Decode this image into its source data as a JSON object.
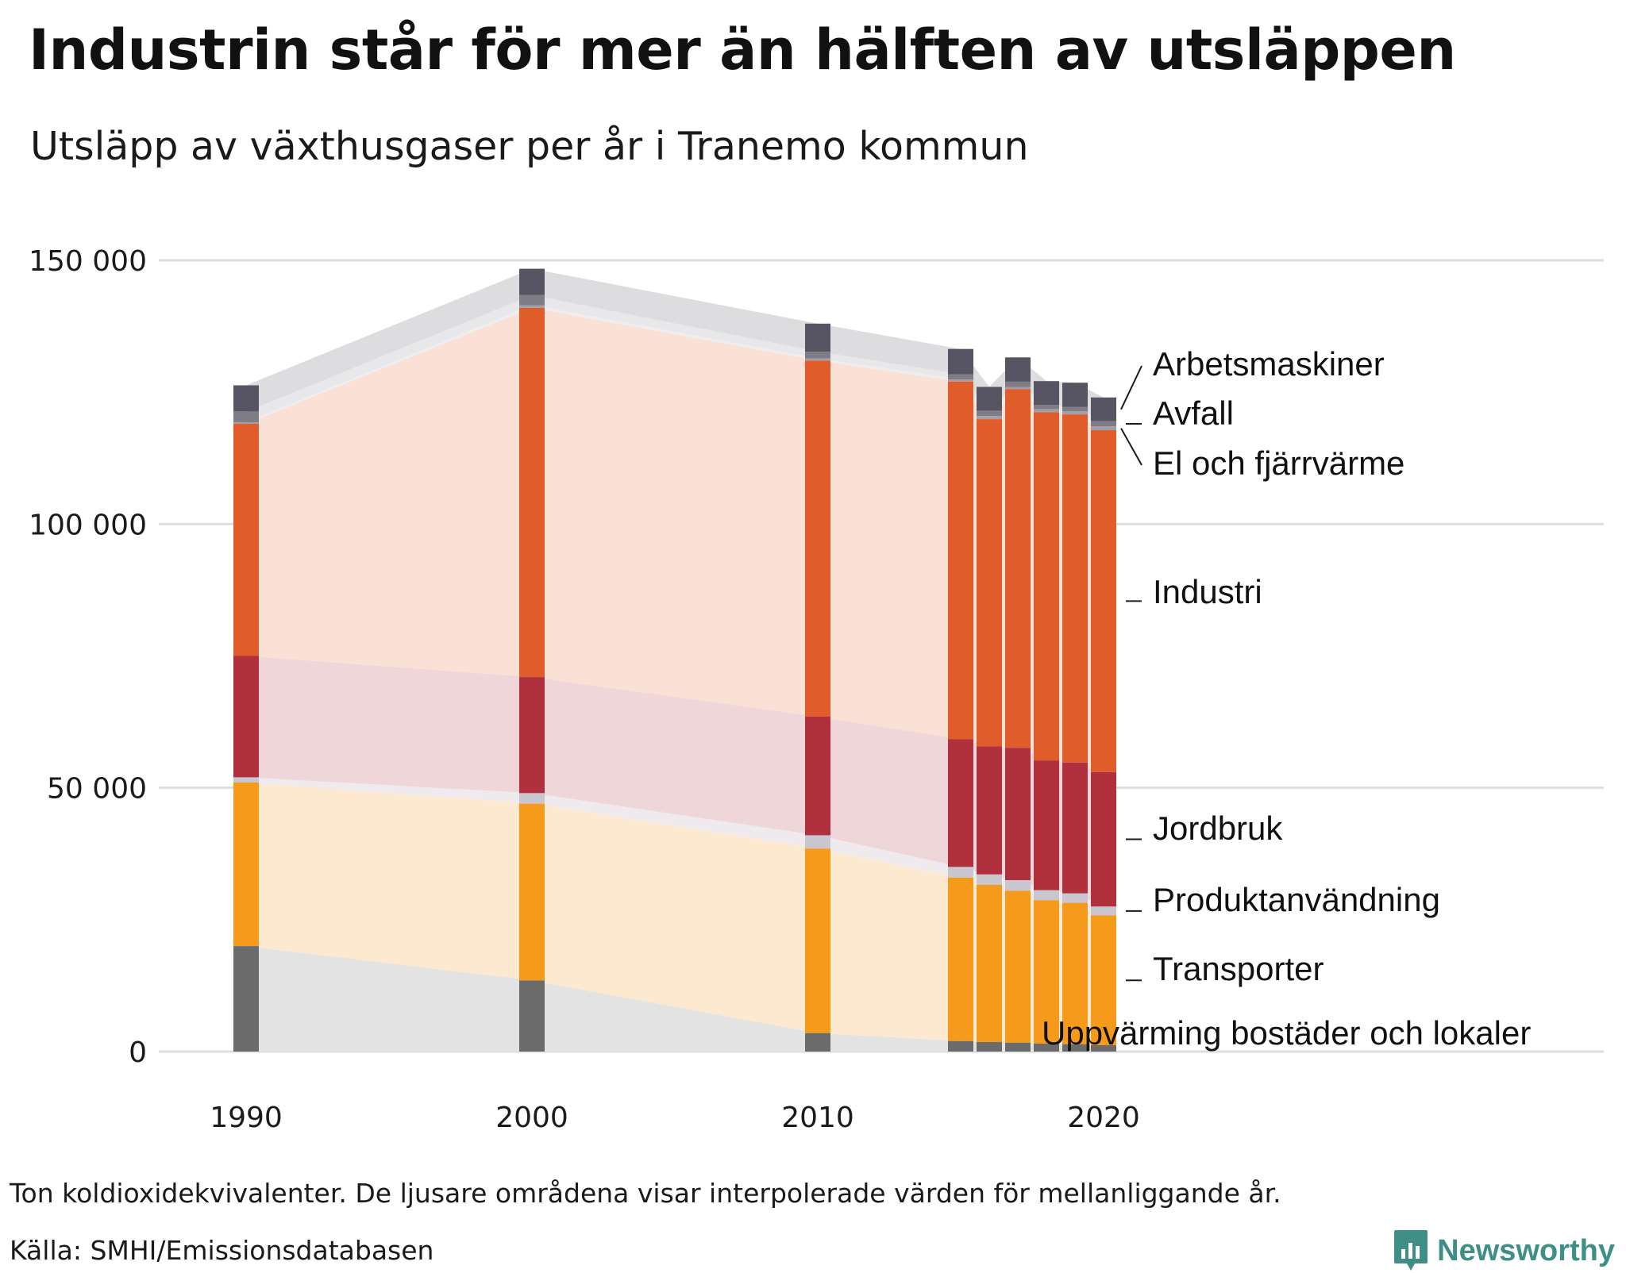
{
  "header": {
    "title": "Industrin står för mer än hälften av utsläppen",
    "subtitle": "Utsläpp av växthusgaser per år i Tranemo kommun"
  },
  "footer": {
    "note": "Ton koldioxidekvivalenter. De ljusare områdena visar interpolerade värden för mellanliggande år.",
    "source": "Källa: SMHI/Emissionsdatabasen",
    "brand": "Newsworthy",
    "brand_color": "#3f8f86"
  },
  "chart_data": {
    "type": "bar",
    "stacked": true,
    "x": [
      1990,
      2000,
      2010,
      2015,
      2016,
      2017,
      2018,
      2019,
      2020
    ],
    "x_ticks": [
      1990,
      2000,
      2010,
      2020
    ],
    "xlim": [
      1983,
      2040
    ],
    "ylim": [
      0,
      155000
    ],
    "y_ticks": [
      0,
      50000,
      100000,
      150000
    ],
    "y_tick_labels": [
      "0",
      "50 000",
      "100 000",
      "150 000"
    ],
    "grid": true,
    "interpolated_areas": true,
    "series": [
      {
        "name": "Uppvärming bostäder och lokaler",
        "color": "#6b6b6b",
        "fill": "#e3e3e3",
        "values": [
          20000,
          13500,
          3500,
          2000,
          1800,
          1700,
          1500,
          1400,
          1200
        ]
      },
      {
        "name": "Transporter",
        "color": "#f59a1a",
        "fill": "#fce9cf",
        "values": [
          31000,
          33500,
          35000,
          31000,
          29800,
          28800,
          27200,
          26800,
          24600
        ]
      },
      {
        "name": "Produktanvändning",
        "color": "#c9c6cf",
        "fill": "#eeeaee",
        "values": [
          1000,
          2000,
          2500,
          2000,
          2000,
          2000,
          1900,
          1800,
          1700
        ]
      },
      {
        "name": "Jordbruk",
        "color": "#b0303e",
        "fill": "#eed6d9",
        "values": [
          23000,
          22000,
          22500,
          24200,
          24300,
          25100,
          24600,
          24800,
          25500
        ]
      },
      {
        "name": "Industri",
        "color": "#e05c2b",
        "fill": "#fae0d5",
        "values": [
          44000,
          70000,
          67500,
          67800,
          62000,
          68000,
          66000,
          66000,
          64800
        ]
      },
      {
        "name": "El och fjärrvärme",
        "color": "#a09ea8",
        "fill": "#eeeef0",
        "values": [
          300,
          500,
          400,
          400,
          600,
          400,
          600,
          600,
          700
        ]
      },
      {
        "name": "Avfall",
        "color": "#7f7c86",
        "fill": "#e8e7ea",
        "values": [
          2000,
          1900,
          1300,
          1000,
          1000,
          1000,
          800,
          800,
          1000
        ]
      },
      {
        "name": "Arbetsmaskiner",
        "color": "#575463",
        "fill": "#dddddf",
        "values": [
          5000,
          5000,
          5300,
          4800,
          4500,
          4600,
          4500,
          4600,
          4500
        ]
      }
    ]
  }
}
